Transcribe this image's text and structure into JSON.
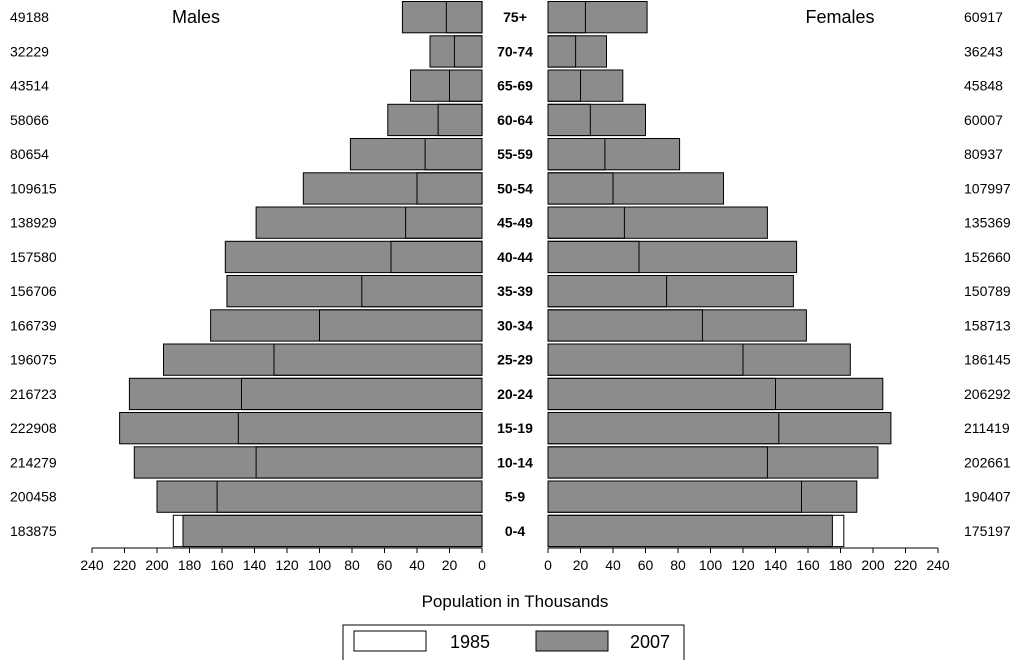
{
  "chart_data": {
    "type": "bar",
    "subtype": "population-pyramid",
    "categories": [
      "0-4",
      "5-9",
      "10-14",
      "15-19",
      "20-24",
      "25-29",
      "30-34",
      "35-39",
      "40-44",
      "45-49",
      "50-54",
      "55-59",
      "60-64",
      "65-69",
      "70-74",
      "75+"
    ],
    "males_label": "Males",
    "females_label": "Females",
    "xlabel": "Population in Thousands",
    "xlim": [
      0,
      240
    ],
    "xticks": [
      "240",
      "220",
      "200",
      "180",
      "160",
      "140",
      "120",
      "100",
      "80",
      "60",
      "40",
      "20",
      "0"
    ],
    "xticks_right": [
      "0",
      "20",
      "40",
      "60",
      "80",
      "100",
      "120",
      "140",
      "160",
      "180",
      "200",
      "220",
      "240"
    ],
    "legend": [
      "1985",
      "2007"
    ],
    "colors": {
      "1985": "#ffffff",
      "2007": "#8c8c8c"
    },
    "series": [
      {
        "name": "1985",
        "side": "males",
        "values": [
          190,
          163,
          139,
          150,
          148,
          128,
          100,
          74,
          56,
          47,
          40,
          35,
          27,
          20,
          17,
          22
        ]
      },
      {
        "name": "2007",
        "side": "males",
        "values": [
          184,
          200,
          214,
          223,
          217,
          196,
          167,
          157,
          158,
          139,
          110,
          81,
          58,
          44,
          32,
          49
        ]
      },
      {
        "name": "1985",
        "side": "females",
        "values": [
          182,
          156,
          135,
          142,
          140,
          120,
          95,
          73,
          56,
          47,
          40,
          35,
          26,
          20,
          17,
          23
        ]
      },
      {
        "name": "2007",
        "side": "females",
        "values": [
          175,
          190,
          203,
          211,
          206,
          186,
          159,
          151,
          153,
          135,
          108,
          81,
          60,
          46,
          36,
          61
        ]
      }
    ],
    "males_totals": [
      "183875",
      "200458",
      "214279",
      "222908",
      "216723",
      "196075",
      "166739",
      "156706",
      "157580",
      "138929",
      "109615",
      "80654",
      "58066",
      "43514",
      "32229",
      "49188"
    ],
    "females_totals": [
      "175197",
      "190407",
      "202661",
      "211419",
      "206292",
      "186145",
      "158713",
      "150789",
      "152660",
      "135369",
      "107997",
      "80937",
      "60007",
      "45848",
      "36243",
      "60917"
    ]
  }
}
